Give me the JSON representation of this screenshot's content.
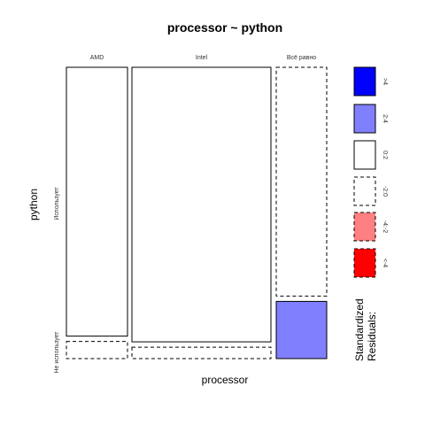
{
  "chart_data": {
    "type": "mosaic",
    "title": "processor ~ python",
    "xlabel": "processor",
    "ylabel": "python",
    "x_categories": [
      "AMD",
      "Intel",
      "Всё равно"
    ],
    "y_categories": [
      "Не использует",
      "Использует"
    ],
    "column_widths": [
      0.298,
      0.681,
      0.126
    ],
    "cells": [
      {
        "x": "AMD",
        "y": "Не использует",
        "proportion": 0.06,
        "shade": "neg0"
      },
      {
        "x": "AMD",
        "y": "Использует",
        "proportion": 0.94,
        "shade": "pos0"
      },
      {
        "x": "Intel",
        "y": "Не использует",
        "proportion": 0.04,
        "shade": "neg0"
      },
      {
        "x": "Intel",
        "y": "Использует",
        "proportion": 0.96,
        "shade": "pos0"
      },
      {
        "x": "Всё равно",
        "y": "Не использует",
        "proportion": 0.2,
        "shade": "pos2"
      },
      {
        "x": "Всё равно",
        "y": "Использует",
        "proportion": 0.8,
        "shade": "neg0"
      }
    ],
    "legend": {
      "title": "Standardized Residuals:",
      "items": [
        {
          "label": ">4",
          "fill": "#0000FF",
          "dashed": false
        },
        {
          "label": "2:4",
          "fill": "#8080FF",
          "dashed": false
        },
        {
          "label": "0:2",
          "fill": "#FFFFFF",
          "dashed": false
        },
        {
          "label": "-2:0",
          "fill": "#FFFFFF",
          "dashed": true
        },
        {
          "label": "-4:-2",
          "fill": "#FF8080",
          "dashed": true
        },
        {
          "label": "<-4",
          "fill": "#FF0000",
          "dashed": true
        }
      ]
    },
    "shade_colors": {
      "pos4": "#0000FF",
      "pos2": "#8080FF",
      "pos0": "#FFFFFF",
      "neg0": "#FFFFFF",
      "neg2": "#FF8080",
      "neg4": "#FF0000"
    }
  }
}
